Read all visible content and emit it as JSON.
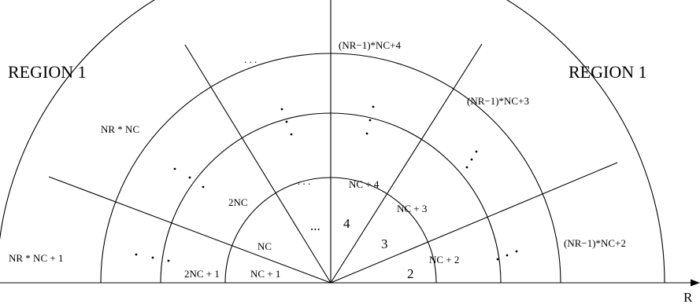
{
  "diagram": {
    "axis_label": "R",
    "region_left": "REGION  1",
    "region_right": "REGION  1",
    "cells": {
      "c2": "2",
      "c3": "3",
      "c4": "4",
      "c_inner_dots": "...",
      "nc": "NC",
      "nc1": "NC + 1",
      "nc2": "NC + 2",
      "nc3": "NC + 3",
      "nc4": "NC + 4",
      "twonc": "2NC",
      "twonc1": "2NC + 1",
      "nrnc": "NR * NC",
      "nrnc1": "NR * NC + 1",
      "nr1nc2": "(NR−1)*NC+2",
      "nr1nc3": "(NR−1)*NC+3",
      "nr1nc4": "(NR−1)*NC+4",
      "ring3_mid_dots": ". . .",
      "outer_top_dots": ". . .",
      "ring3_left_dots": ". . .",
      "outer_left_dots": ". . .",
      "ring3_right_dots": ". . ."
    }
  }
}
